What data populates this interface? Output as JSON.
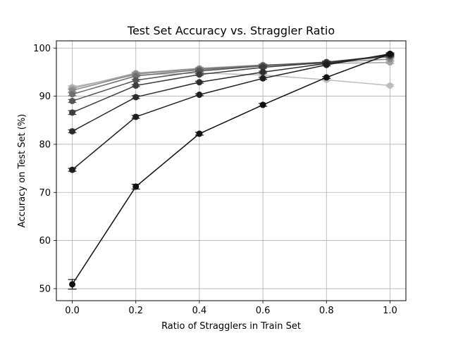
{
  "chart_data": {
    "type": "line",
    "title": "Test Set Accuracy vs. Straggler Ratio",
    "xlabel": "Ratio of Stragglers in Train Set",
    "ylabel": "Accuracy on Test Set (%)",
    "xlim": [
      -0.05,
      1.05
    ],
    "ylim": [
      47.5,
      101.5
    ],
    "xticks": [
      0.0,
      0.2,
      0.4,
      0.6,
      0.8,
      1.0
    ],
    "xtick_labels": [
      "0.0",
      "0.2",
      "0.4",
      "0.6",
      "0.8",
      "1.0"
    ],
    "yticks": [
      50,
      60,
      70,
      80,
      90,
      100
    ],
    "ytick_labels": [
      "50",
      "60",
      "70",
      "80",
      "90",
      "100"
    ],
    "grid": true,
    "x": [
      0.0,
      0.2,
      0.4,
      0.6,
      0.8,
      1.0
    ],
    "series": [
      {
        "color": "#111111",
        "values": [
          50.9,
          71.2,
          82.2,
          88.2,
          93.9,
          98.8
        ],
        "errors": [
          1.0,
          0.5,
          0.3,
          0.3,
          0.2,
          0.2
        ]
      },
      {
        "color": "#1e1e1e",
        "values": [
          74.7,
          85.7,
          90.3,
          93.7,
          96.5,
          98.8
        ],
        "errors": [
          0.3,
          0.3,
          0.2,
          0.2,
          0.2,
          0.2
        ]
      },
      {
        "color": "#2c2c2c",
        "values": [
          82.7,
          89.8,
          92.9,
          95.0,
          96.8,
          98.6
        ],
        "errors": [
          0.3,
          0.3,
          0.2,
          0.2,
          0.2,
          0.2
        ]
      },
      {
        "color": "#3e3e3e",
        "values": [
          86.6,
          92.2,
          94.5,
          96.0,
          97.0,
          98.5
        ],
        "errors": [
          0.4,
          0.2,
          0.2,
          0.2,
          0.2,
          0.2
        ]
      },
      {
        "color": "#555555",
        "values": [
          89.0,
          93.3,
          95.2,
          96.3,
          97.1,
          98.4
        ],
        "errors": [
          0.3,
          0.2,
          0.2,
          0.2,
          0.2,
          0.2
        ]
      },
      {
        "color": "#6e6e6e",
        "values": [
          90.4,
          94.2,
          95.5,
          96.4,
          97.1,
          98.2
        ],
        "errors": [
          0.3,
          0.2,
          0.2,
          0.2,
          0.2,
          0.2
        ]
      },
      {
        "color": "#8a8a8a",
        "values": [
          91.2,
          94.6,
          95.7,
          96.4,
          97.0,
          97.7
        ],
        "errors": [
          0.3,
          0.2,
          0.2,
          0.2,
          0.2,
          0.2
        ]
      },
      {
        "color": "#a3a3a3",
        "values": [
          91.6,
          94.8,
          95.8,
          96.5,
          96.8,
          97.0
        ],
        "errors": [
          0.3,
          0.2,
          0.2,
          0.2,
          0.2,
          0.2
        ]
      },
      {
        "color": "#bdbdbd",
        "values": [
          91.9,
          94.4,
          94.8,
          94.4,
          93.4,
          92.2
        ],
        "errors": [
          0.3,
          0.2,
          0.2,
          0.2,
          0.2,
          0.2
        ]
      }
    ]
  }
}
